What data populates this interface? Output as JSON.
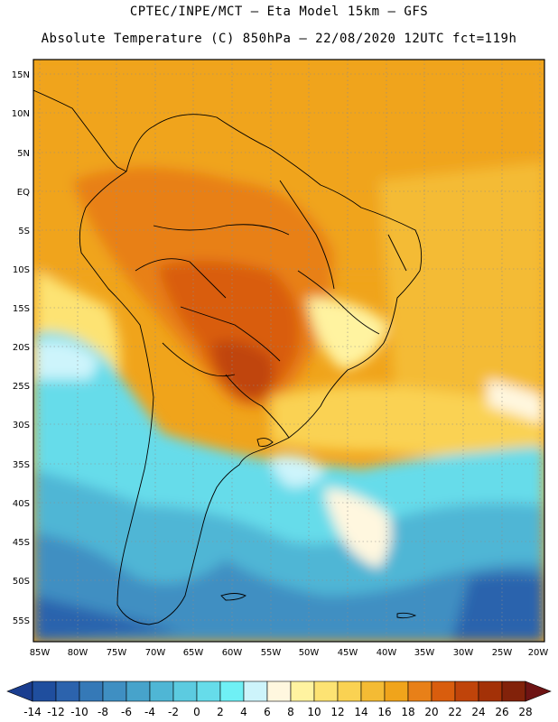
{
  "header": {
    "line1": "CPTEC/INPE/MCT –  Eta Model 15km – GFS",
    "line2": "Absolute Temperature (C) 850hPa – 22/08/2020 12UTC fct=119h"
  },
  "map": {
    "lat_labels": [
      "15N",
      "10N",
      "5N",
      "EQ",
      "5S",
      "10S",
      "15S",
      "20S",
      "25S",
      "30S",
      "35S",
      "40S",
      "45S",
      "50S",
      "55S"
    ],
    "lon_labels": [
      "85W",
      "80W",
      "75W",
      "70W",
      "65W",
      "60W",
      "55W",
      "50W",
      "45W",
      "40W",
      "35W",
      "30W",
      "25W",
      "20W"
    ],
    "grid": true,
    "region": "South America"
  },
  "colorbar": {
    "levels": [
      "-14",
      "-12",
      "-10",
      "-8",
      "-6",
      "-4",
      "-2",
      "0",
      "2",
      "4",
      "6",
      "8",
      "10",
      "12",
      "14",
      "16",
      "18",
      "20",
      "22",
      "24",
      "26",
      "28"
    ],
    "colors": [
      "#1a3d8f",
      "#1f4e9e",
      "#2c63ad",
      "#3579b7",
      "#3f8fc2",
      "#47a3cb",
      "#4fb6d5",
      "#5ccbe0",
      "#66dcea",
      "#6ff0f5",
      "#cdf4fb",
      "#fff7df",
      "#fff3a0",
      "#fde373",
      "#fad252",
      "#f4bb34",
      "#f0a41b",
      "#e88018",
      "#d95d0d",
      "#c0440a",
      "#a33107",
      "#82220a",
      "#6e1414"
    ]
  }
}
